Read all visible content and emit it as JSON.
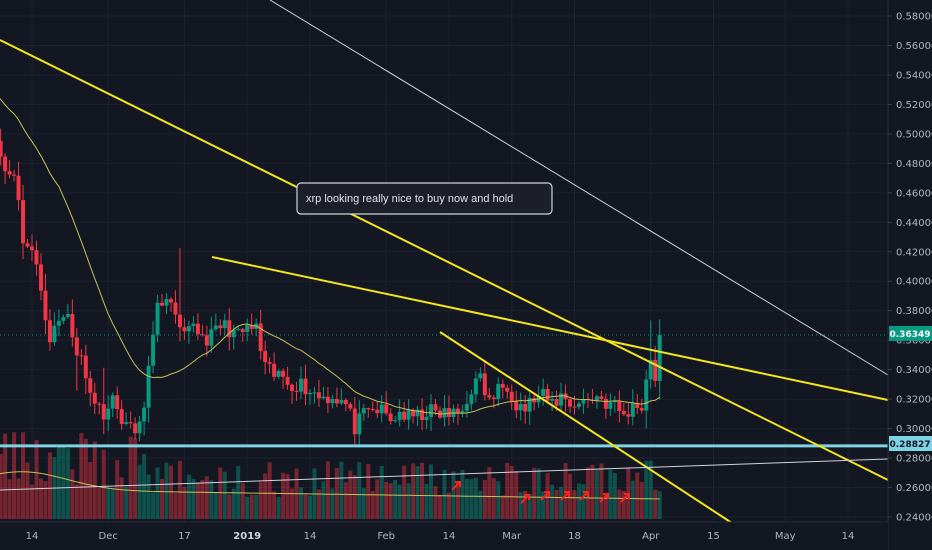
{
  "chart_data": {
    "type": "candlestick",
    "annotation": "xrp looking really nice to buy now and hold",
    "price_axis": {
      "labels": [
        "0.58000",
        "0.56000",
        "0.54000",
        "0.52000",
        "0.50000",
        "0.48000",
        "0.46000",
        "0.44000",
        "0.42000",
        "0.40000",
        "0.38000",
        "0.36000",
        "0.34000",
        "0.32000",
        "0.30000",
        "0.28000",
        "0.26000",
        "0.24000"
      ],
      "values": [
        0.58,
        0.56,
        0.54,
        0.52,
        0.5,
        0.48,
        0.46,
        0.44,
        0.42,
        0.4,
        0.38,
        0.36,
        0.34,
        0.32,
        0.3,
        0.28,
        0.26,
        0.24
      ],
      "ylim": [
        0.234,
        0.588
      ]
    },
    "time_axis": {
      "labels": [
        "14",
        "Dec",
        "17",
        "2019",
        "14",
        "Feb",
        "14",
        "Mar",
        "18",
        "Apr",
        "15",
        "May",
        "14"
      ],
      "positions": [
        14,
        31,
        48,
        62,
        76,
        93,
        107,
        121,
        135,
        152,
        166,
        182,
        196
      ]
    },
    "last_price": {
      "label": "0.36349",
      "value": 0.36349,
      "color": "#089981"
    },
    "support": {
      "label": "0.28827",
      "value": 0.28827,
      "color": "#7fd3e6"
    },
    "colors": {
      "up": "#089981",
      "down": "#f23645",
      "trendline": "#f5e51b",
      "ma": "#c9bf5a",
      "background": "#131722",
      "grid": "#1e2230"
    },
    "candles": [],
    "arrow_count": 6
  }
}
